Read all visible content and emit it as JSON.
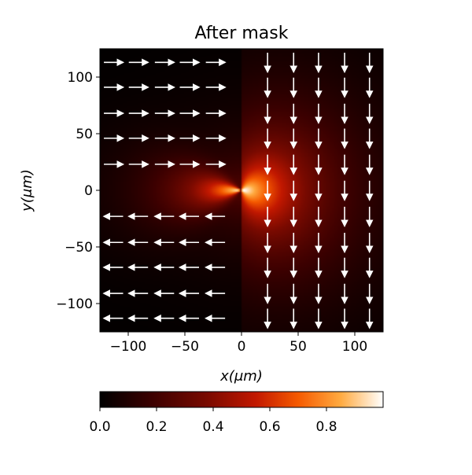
{
  "chart_data": {
    "type": "heatmap",
    "title": "After mask",
    "xlabel": "x(μm)",
    "ylabel": "y(μm)",
    "xlim": [
      -125,
      125
    ],
    "ylim": [
      -125,
      125
    ],
    "x_ticks": [
      -100,
      -50,
      0,
      50,
      100
    ],
    "y_ticks": [
      -100,
      -50,
      0,
      50,
      100
    ],
    "x_tick_labels": [
      "−100",
      "−50",
      "0",
      "50",
      "100"
    ],
    "y_tick_labels": [
      "−100",
      "−50",
      "0",
      "50",
      "100"
    ],
    "colormap": "fire",
    "colorbar": {
      "range": [
        0.0,
        1.0
      ],
      "ticks": [
        0.0,
        0.2,
        0.4,
        0.6,
        0.8
      ],
      "tick_labels": [
        "0.0",
        "0.2",
        "0.4",
        "0.6",
        "0.8"
      ],
      "placement": "bottom"
    },
    "vector_field": {
      "arrow_color": "#ffffff",
      "left_half_upper": {
        "direction": "+x",
        "rows_y": [
          113,
          91,
          68,
          46,
          23
        ]
      },
      "left_half_lower": {
        "direction": "-x",
        "rows_y": [
          -23,
          -46,
          -68,
          -91,
          -113
        ]
      },
      "right_half": {
        "direction": "-y",
        "columns_x": [
          23,
          46,
          68,
          91,
          113
        ]
      }
    },
    "grid": false
  }
}
